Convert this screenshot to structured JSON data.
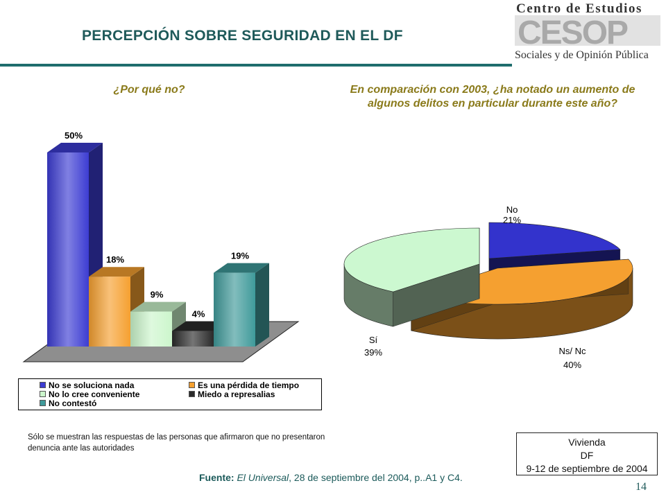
{
  "header": {
    "title": "PERCEPCIÓN SOBRE SEGURIDAD EN EL DF",
    "logo": {
      "line1": "Centro de Estudios",
      "acronym": "CESOP",
      "line2": "Sociales y de Opinión Pública"
    }
  },
  "colors": {
    "title": "#1f5a5a",
    "subtitle": "#8a7a1a",
    "rule": "#1f6d6d"
  },
  "chart_data": [
    {
      "type": "bar",
      "title": "¿Por qué no?",
      "categories": [
        "No se soluciona nada",
        "Es una pérdida de tiempo",
        "No lo cree conveniente",
        "Miedo a represalias",
        "No contestó"
      ],
      "values": [
        50,
        18,
        9,
        4,
        19
      ],
      "value_labels": [
        "50%",
        "18%",
        "9%",
        "4%",
        "19%"
      ],
      "colors": [
        "#3c3cd2",
        "#f5a030",
        "#ccf6cc",
        "#2a2a2a",
        "#3f9a9a"
      ],
      "ylim": [
        0,
        50
      ],
      "grid": false,
      "legend": "bottom",
      "three_d": true
    },
    {
      "type": "pie",
      "title": "En comparación con 2003, ¿ha notado un aumento de algunos delitos en particular durante este año?",
      "labels": [
        "No",
        "Ns/ Nc",
        "Sí"
      ],
      "values": [
        21,
        40,
        39
      ],
      "value_labels": [
        "21%",
        "40%",
        "39%"
      ],
      "colors": [
        "#3333cc",
        "#f5a030",
        "#ccf8d0"
      ],
      "exploded": true,
      "three_d": true
    }
  ],
  "note": "Sólo se muestran las respuestas de las personas que afirmaron que no presentaron denuncia ante las autoridades",
  "source": {
    "label": "Fuente:",
    "publication": "El Universal",
    "rest": ", 28  de septiembre del 2004, p..A1 y C4."
  },
  "infobox": {
    "line1": "Vivienda",
    "line2": "DF",
    "line3": "9-12 de septiembre de 2004"
  },
  "page_number": "14"
}
